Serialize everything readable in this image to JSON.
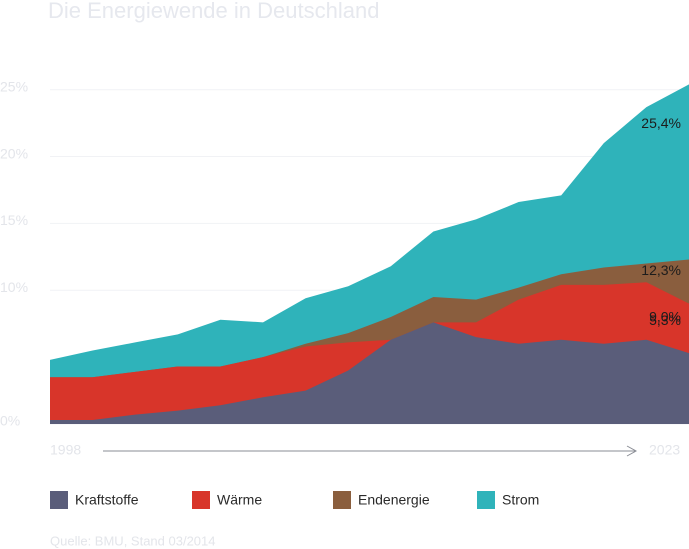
{
  "chart_data": {
    "type": "area",
    "title": "Die Energiewende in Deutschland",
    "source": "Quelle: BMU, Stand 03/2014",
    "categories": [
      "1998",
      null,
      null,
      null,
      null,
      null,
      null,
      null,
      null,
      null,
      null,
      null,
      null,
      null,
      null,
      "2023"
    ],
    "series": [
      {
        "name": "Strom",
        "color": "#2fb3ba",
        "values": [
          4.8,
          5.5,
          6.1,
          6.7,
          7.8,
          7.6,
          9.4,
          10.3,
          11.8,
          14.4,
          15.3,
          16.6,
          17.1,
          21.0,
          23.7,
          25.4
        ],
        "end_label": "25,4%"
      },
      {
        "name": "Endenergie",
        "color": "#8a5e3e",
        "values": [
          3.5,
          3.5,
          3.9,
          4.3,
          4.3,
          5.0,
          6.0,
          6.8,
          8.0,
          9.5,
          9.3,
          10.2,
          11.2,
          11.7,
          12.0,
          12.3
        ],
        "end_label": "12,3%"
      },
      {
        "name": "Wärme",
        "color": "#d8352a",
        "values": [
          3.5,
          3.5,
          3.9,
          4.3,
          4.3,
          5.0,
          5.8,
          6.1,
          6.3,
          7.6,
          7.6,
          9.3,
          10.4,
          10.4,
          10.6,
          9.0
        ],
        "end_label": "9,0%"
      },
      {
        "name": "Kraftstoffe",
        "color": "#5a5d7a",
        "values": [
          0.3,
          0.3,
          0.7,
          1.0,
          1.4,
          2.0,
          2.5,
          4.0,
          6.3,
          7.6,
          6.5,
          6.0,
          6.3,
          6.0,
          6.3,
          5.3
        ],
        "end_label": "5,3%"
      }
    ],
    "ylim": [
      0,
      25.8
    ],
    "yticks": [
      {
        "value": 0,
        "label": "0%"
      },
      {
        "value": 10,
        "label": "10%"
      },
      {
        "value": 15,
        "label": "15%"
      },
      {
        "value": 20,
        "label": "20%"
      },
      {
        "value": 25,
        "label": "25%"
      }
    ],
    "grid": true
  }
}
